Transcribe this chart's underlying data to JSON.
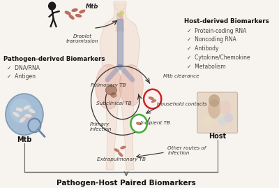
{
  "bg_color": "#f7f3ee",
  "title": "Pathogen-Host Paired Biomarkers",
  "title_fontsize": 7.5,
  "title_fontweight": "bold",
  "pathogen_title": "Pathogen-derived Biomarkers",
  "pathogen_items": [
    "DNA/RNA",
    "Antigen"
  ],
  "host_title": "Host-derived Biomarkers",
  "host_items": [
    "Protein-coding RNA",
    "Noncoding RNA",
    "Antibody",
    "Cytokine/Chemokine",
    "Metabolism"
  ],
  "mtb_label": "Mtb",
  "host_label": "Host",
  "droplet_label": "Droplet\ntransmission",
  "mtb_clearance": "Mtb clearance",
  "household": "Household contacts",
  "pulmonary_tb": "Pulmonary TB",
  "subclinical_tb": "Subclinical TB",
  "incipient_tb": "Incipient TB",
  "primary_infection": "Primary\ninfection",
  "extrapulmonary": "Extrapulmonary TB",
  "other_routes": "Other routes of\ninfection",
  "mtb_top": "Mtb",
  "body_color": "#f2ddd0",
  "body_edge": "#e0c8b8",
  "lung_color": "#e8b0a0",
  "trachea_color": "#8090b8",
  "arrow_color": "#333333",
  "green_circle_edge": "#44aa33",
  "red_circle_edge": "#cc2222",
  "bacteria_color": "#c07060",
  "bracket_color": "#666666"
}
